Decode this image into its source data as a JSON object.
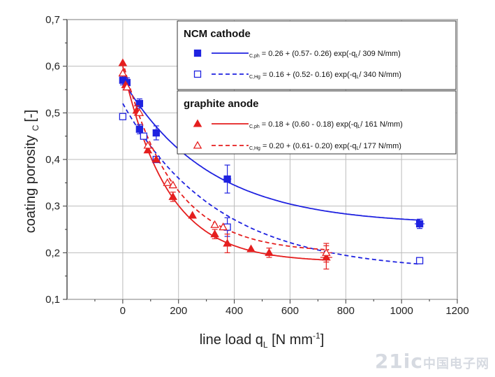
{
  "chart_data": {
    "type": "scatter",
    "xlabel": "line load q",
    "xlabel_sub": "L",
    "xlabel_unit": " [N mm",
    "xlabel_sup": "-1",
    "xlabel_end": "]",
    "ylabel": "coating porosity",
    "ylabel_sub": "C",
    "ylabel_unit": "[-]",
    "xlim": [
      -200,
      1200
    ],
    "ylim": [
      0.1,
      0.7
    ],
    "x_ticks": [
      "0",
      "200",
      "400",
      "600",
      "800",
      "1000",
      "1200"
    ],
    "y_ticks": [
      "0,1",
      "0,2",
      "0,3",
      "0,4",
      "0,5",
      "0,6",
      "0,7"
    ],
    "grid": true,
    "legend_position": "top-right",
    "colors": {
      "ncm": "#1f22e0",
      "graphite": "#e51e1e"
    },
    "legend": {
      "ncm_title": "NCM cathode",
      "graphite_title": "graphite anode",
      "entries": [
        {
          "sub": "C,ph",
          "eq": "= 0.26 + (0.57- 0.26) exp(-q",
          "sub2": "L",
          "eq2": "/ 309 N/mm)"
        },
        {
          "sub": "C,Hg",
          "eq": "= 0.16 + (0.52- 0.16) exp(-q",
          "sub2": "L",
          "eq2": "/ 340 N/mm)"
        },
        {
          "sub": "C,ph",
          "eq": "= 0.18 + (0.60 - 0.18) exp(-q",
          "sub2": "L",
          "eq2": "/ 161 N/mm)"
        },
        {
          "sub": "C,Hg",
          "eq": "= 0.20 + (0.61- 0.20) exp(-q",
          "sub2": "L",
          "eq2": "/ 177 N/mm)"
        }
      ]
    },
    "series": [
      {
        "color": "#1f22e0",
        "marker": "square-filled",
        "points": [
          [
            0,
            0.57,
            0.015,
            0.01
          ],
          [
            15,
            0.565,
            0.01,
            0.01
          ],
          [
            60,
            0.465,
            0.01,
            0.01
          ],
          [
            60,
            0.52,
            0.015,
            0.01
          ],
          [
            120,
            0.457,
            0.015,
            0.015
          ],
          [
            375,
            0.358,
            0.02,
            0.03
          ],
          [
            1065,
            0.262,
            0.025,
            0.01
          ]
        ],
        "fit": {
          "a": 0.26,
          "b": 0.57,
          "tau": 309,
          "style": "solid",
          "xmax": 1065
        }
      },
      {
        "color": "#1f22e0",
        "marker": "square-open",
        "points": [
          [
            0,
            0.492,
            0,
            0
          ],
          [
            75,
            0.45,
            0,
            0
          ],
          [
            120,
            0.4,
            0,
            0
          ],
          [
            375,
            0.255,
            0.015,
            0.02
          ],
          [
            1065,
            0.183,
            0,
            0
          ]
        ],
        "fit": {
          "a": 0.16,
          "b": 0.52,
          "tau": 340,
          "style": "dashed",
          "xmax": 1065
        }
      },
      {
        "color": "#e51e1e",
        "marker": "triangle-filled",
        "points": [
          [
            0,
            0.607,
            0.005,
            0
          ],
          [
            10,
            0.56,
            0.01,
            0
          ],
          [
            15,
            0.555,
            0,
            0
          ],
          [
            50,
            0.505,
            0.01,
            0.01
          ],
          [
            90,
            0.42,
            0.01,
            0
          ],
          [
            120,
            0.4,
            0,
            0
          ],
          [
            180,
            0.32,
            0.01,
            0.01
          ],
          [
            250,
            0.28,
            0.01,
            0
          ],
          [
            330,
            0.24,
            0.01,
            0.01
          ],
          [
            375,
            0.22,
            0.01,
            0.02
          ],
          [
            460,
            0.208,
            0.01,
            0
          ],
          [
            525,
            0.2,
            0.01,
            0.01
          ],
          [
            730,
            0.19,
            0.03,
            0.025
          ]
        ],
        "fit": {
          "a": 0.18,
          "b": 0.6,
          "tau": 161,
          "style": "solid",
          "xmax": 720
        }
      },
      {
        "color": "#e51e1e",
        "marker": "triangle-open",
        "points": [
          [
            0,
            0.585,
            0,
            0
          ],
          [
            15,
            0.555,
            0,
            0
          ],
          [
            60,
            0.5,
            0,
            0
          ],
          [
            90,
            0.43,
            0,
            0
          ],
          [
            160,
            0.35,
            0.01,
            0
          ],
          [
            180,
            0.345,
            0,
            0
          ],
          [
            330,
            0.26,
            0.01,
            0
          ],
          [
            360,
            0.255,
            0,
            0
          ],
          [
            730,
            0.2,
            0.03,
            0.02
          ]
        ],
        "fit": {
          "a": 0.2,
          "b": 0.61,
          "tau": 177,
          "style": "dashed",
          "xmax": 740
        }
      }
    ]
  },
  "watermark": "21ic中国电子网"
}
